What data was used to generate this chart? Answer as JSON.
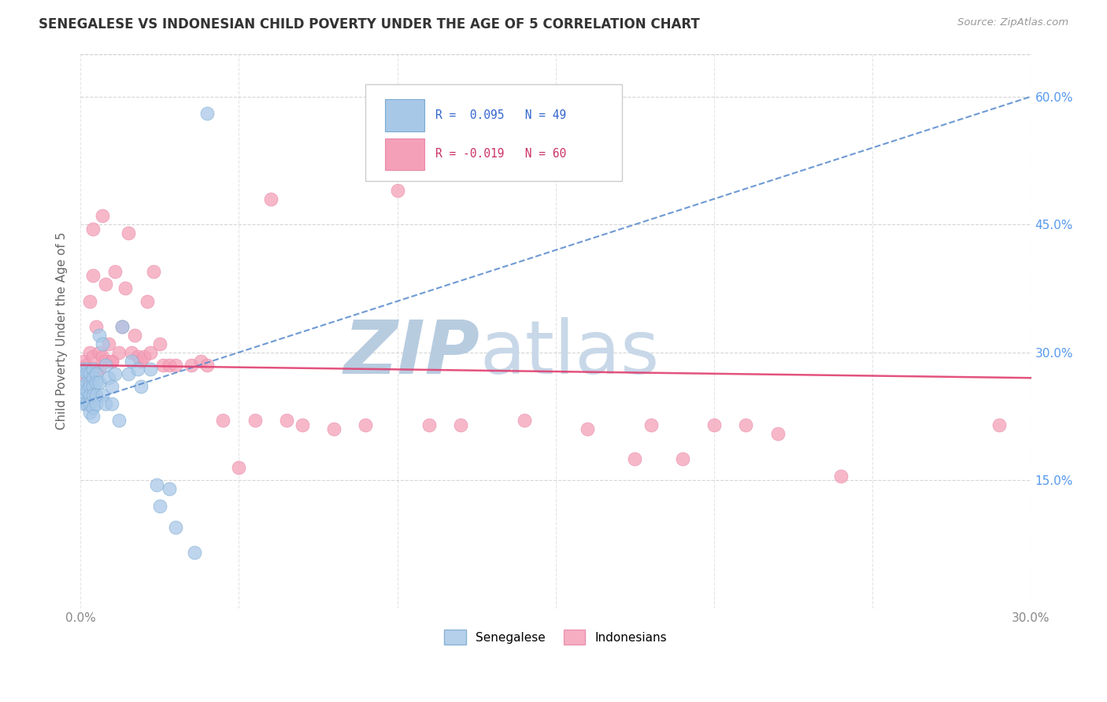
{
  "title": "SENEGALESE VS INDONESIAN CHILD POVERTY UNDER THE AGE OF 5 CORRELATION CHART",
  "source": "Source: ZipAtlas.com",
  "xlabel": "",
  "ylabel": "Child Poverty Under the Age of 5",
  "xlim": [
    0.0,
    0.3
  ],
  "ylim": [
    0.0,
    0.65
  ],
  "xtick_vals": [
    0.0,
    0.05,
    0.1,
    0.15,
    0.2,
    0.25,
    0.3
  ],
  "xtick_labels_show": [
    "0.0%",
    "",
    "",
    "",
    "",
    "",
    "30.0%"
  ],
  "ytick_vals": [
    0.0,
    0.15,
    0.3,
    0.45,
    0.6
  ],
  "ytick_labels_left": [
    "",
    "",
    "",
    "",
    ""
  ],
  "ytick_labels_right": [
    "",
    "15.0%",
    "30.0%",
    "45.0%",
    "60.0%"
  ],
  "legend_label_senegalese": "Senegalese",
  "legend_label_indonesian": "Indonesians",
  "blue_color": "#a8c8e8",
  "pink_color": "#f4a0b8",
  "blue_dot_edge": "#7aaad0",
  "pink_dot_edge": "#e888a8",
  "blue_line_color": "#5588cc",
  "pink_line_color": "#e04070",
  "watermark_zip": "ZIP",
  "watermark_atlas": "atlas",
  "watermark_color_zip": "#b8cce0",
  "watermark_color_atlas": "#c8d8e8",
  "grid_color": "#cccccc",
  "bg_color": "#ffffff",
  "title_color": "#333333",
  "source_color": "#999999",
  "axis_label_color": "#666666",
  "tick_label_color": "#888888",
  "right_tick_color": "#5599ee",
  "senegalese_x": [
    0.001,
    0.001,
    0.001,
    0.001,
    0.001,
    0.002,
    0.002,
    0.002,
    0.002,
    0.002,
    0.003,
    0.003,
    0.003,
    0.003,
    0.003,
    0.003,
    0.004,
    0.004,
    0.004,
    0.004,
    0.004,
    0.004,
    0.005,
    0.005,
    0.005,
    0.005,
    0.006,
    0.006,
    0.007,
    0.007,
    0.008,
    0.008,
    0.009,
    0.01,
    0.01,
    0.011,
    0.012,
    0.013,
    0.015,
    0.016,
    0.018,
    0.019,
    0.022,
    0.024,
    0.025,
    0.028,
    0.03,
    0.036,
    0.04
  ],
  "senegalese_y": [
    0.28,
    0.26,
    0.25,
    0.245,
    0.24,
    0.28,
    0.275,
    0.265,
    0.255,
    0.24,
    0.275,
    0.265,
    0.26,
    0.25,
    0.24,
    0.23,
    0.28,
    0.27,
    0.26,
    0.25,
    0.235,
    0.225,
    0.275,
    0.265,
    0.25,
    0.24,
    0.32,
    0.265,
    0.31,
    0.25,
    0.285,
    0.24,
    0.27,
    0.26,
    0.24,
    0.275,
    0.22,
    0.33,
    0.275,
    0.29,
    0.28,
    0.26,
    0.28,
    0.145,
    0.12,
    0.14,
    0.095,
    0.065,
    0.58
  ],
  "indonesian_x": [
    0.001,
    0.002,
    0.002,
    0.003,
    0.003,
    0.004,
    0.004,
    0.004,
    0.005,
    0.005,
    0.006,
    0.006,
    0.007,
    0.007,
    0.008,
    0.008,
    0.009,
    0.01,
    0.01,
    0.011,
    0.012,
    0.013,
    0.014,
    0.015,
    0.016,
    0.017,
    0.018,
    0.019,
    0.02,
    0.021,
    0.022,
    0.023,
    0.025,
    0.026,
    0.028,
    0.03,
    0.035,
    0.038,
    0.04,
    0.045,
    0.05,
    0.055,
    0.06,
    0.065,
    0.07,
    0.08,
    0.09,
    0.1,
    0.11,
    0.12,
    0.14,
    0.16,
    0.175,
    0.18,
    0.19,
    0.2,
    0.21,
    0.22,
    0.24,
    0.29
  ],
  "indonesian_y": [
    0.29,
    0.285,
    0.27,
    0.36,
    0.3,
    0.445,
    0.39,
    0.295,
    0.33,
    0.28,
    0.3,
    0.28,
    0.46,
    0.295,
    0.38,
    0.29,
    0.31,
    0.29,
    0.29,
    0.395,
    0.3,
    0.33,
    0.375,
    0.44,
    0.3,
    0.32,
    0.295,
    0.29,
    0.295,
    0.36,
    0.3,
    0.395,
    0.31,
    0.285,
    0.285,
    0.285,
    0.285,
    0.29,
    0.285,
    0.22,
    0.165,
    0.22,
    0.48,
    0.22,
    0.215,
    0.21,
    0.215,
    0.49,
    0.215,
    0.215,
    0.22,
    0.21,
    0.175,
    0.215,
    0.175,
    0.215,
    0.215,
    0.205,
    0.155,
    0.215
  ],
  "trend_blue_x0": 0.0,
  "trend_blue_y0": 0.24,
  "trend_blue_x1": 0.3,
  "trend_blue_y1": 0.6,
  "trend_pink_x0": 0.0,
  "trend_pink_y0": 0.285,
  "trend_pink_x1": 0.3,
  "trend_pink_y1": 0.27
}
